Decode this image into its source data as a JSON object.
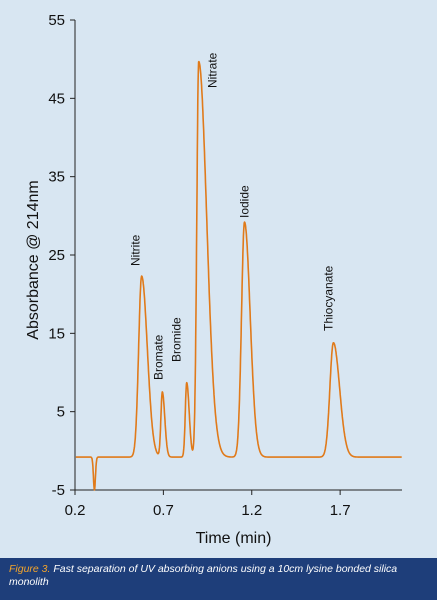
{
  "colors": {
    "background": "#d8e6f2",
    "trace": "#e07a1a",
    "caption_bg": "#1e3e7a",
    "caption_highlight": "#f5a52a"
  },
  "caption": {
    "figure_number": "Figure 3.",
    "text": "Fast separation of UV absorbing anions using a 10cm lysine bonded silica monolith"
  },
  "chart_data": {
    "type": "line",
    "title": "",
    "xlabel": "Time (min)",
    "ylabel": "Absorbance @ 214nm",
    "xlim": [
      0.2,
      2.05
    ],
    "ylim": [
      -5,
      55
    ],
    "x_ticks": [
      0.2,
      0.7,
      1.2,
      1.7
    ],
    "x_tick_labels": [
      "0.2",
      "0.7",
      "1.2",
      "1.7"
    ],
    "y_ticks": [
      -5,
      5,
      15,
      25,
      35,
      45,
      55
    ],
    "y_tick_labels": [
      "-5",
      "5",
      "15",
      "25",
      "35",
      "45",
      "55"
    ],
    "grid": false,
    "series": [
      {
        "baseline": -0.8,
        "dip": {
          "x": 0.31,
          "depth": -5.0
        },
        "peaks": [
          {
            "name": "Nitrite",
            "x": 0.577,
            "y": 22.3
          },
          {
            "name": "Bromate",
            "x": 0.694,
            "y": 7.5
          },
          {
            "name": "Bromide",
            "x": 0.832,
            "y": 8.7
          },
          {
            "name": "Nitrate",
            "x": 0.9,
            "y": 49.7
          },
          {
            "name": "Iodide",
            "x": 1.159,
            "y": 29.2
          },
          {
            "name": "Thiocyanate",
            "x": 1.662,
            "y": 13.8
          }
        ]
      }
    ]
  }
}
